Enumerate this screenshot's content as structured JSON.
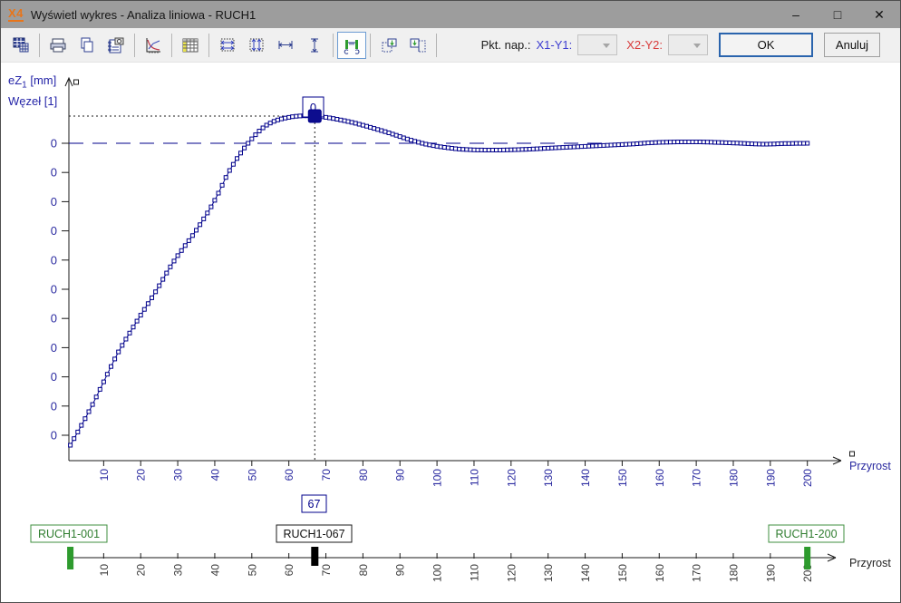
{
  "window": {
    "logo": "X4",
    "title": "Wyświetl wykres - Analiza liniowa - RUCH1",
    "controls": {
      "minimize": "–",
      "maximize": "□",
      "close": "✕"
    }
  },
  "toolbar": {
    "icons": [
      "copy-table",
      "print",
      "copy",
      "capture-notes",
      "chart",
      "data-table",
      "stretch-horizontal",
      "stretch-vertical",
      "scale-horizontal",
      "scale-vertical",
      "slider-range",
      "paste-increment",
      "paste-column"
    ],
    "pkt_nap_label": "Pkt. nap.:",
    "x1y1_label": "X1-Y1:",
    "x2y2_label": "X2-Y2:",
    "ok_label": "OK",
    "cancel_label": "Anuluj"
  },
  "chart": {
    "ylabel_main": "eZ",
    "ylabel_sub": "1",
    "ylabel_unit": " [mm]",
    "ylabel_line2": "Węzeł [1]",
    "xlabel": "Przyrost",
    "selected_value_label": "0",
    "selected_increment_label": "67"
  },
  "chart_data": {
    "type": "line",
    "title": "",
    "xlabel": "Przyrost",
    "ylabel": "eZ1 [mm] Węzeł [1]",
    "y_unit": "mm",
    "x_range": [
      1,
      200
    ],
    "x_ticks": [
      10,
      20,
      30,
      40,
      50,
      60,
      70,
      80,
      90,
      100,
      110,
      120,
      130,
      140,
      150,
      160,
      170,
      180,
      190,
      200
    ],
    "y_tick_labels": [
      "0",
      "0",
      "0",
      "0",
      "0",
      "0",
      "0",
      "0",
      "0",
      "0",
      "0"
    ],
    "ylim_normalized": [
      -1.05,
      0.12
    ],
    "grid": false,
    "selected_point": {
      "x": 67,
      "label": "0"
    },
    "series": [
      {
        "name": "eZ1 Węzeł [1]",
        "marker": "square",
        "control_points": [
          [
            1,
            -1.0
          ],
          [
            6,
            -0.889
          ],
          [
            10,
            -0.79
          ],
          [
            14,
            -0.691
          ],
          [
            19,
            -0.589
          ],
          [
            24,
            -0.492
          ],
          [
            29,
            -0.39
          ],
          [
            35,
            -0.288
          ],
          [
            40,
            -0.189
          ],
          [
            44,
            -0.09
          ],
          [
            49,
            0.0
          ],
          [
            54,
            0.06
          ],
          [
            60,
            0.086
          ],
          [
            67,
            0.09
          ],
          [
            76,
            0.072
          ],
          [
            85,
            0.042
          ],
          [
            96,
            0.0
          ],
          [
            105,
            -0.018
          ],
          [
            113,
            -0.0225
          ],
          [
            122,
            -0.021
          ],
          [
            132,
            -0.015
          ],
          [
            142,
            -0.009
          ],
          [
            152,
            -0.003
          ],
          [
            160,
            0.003
          ],
          [
            170,
            0.0045
          ],
          [
            180,
            0.001
          ],
          [
            188,
            -0.003
          ],
          [
            194,
            -0.001
          ],
          [
            200,
            0.0
          ]
        ]
      }
    ]
  },
  "slider": {
    "labels": {
      "start": "RUCH1-001",
      "current": "RUCH1-067",
      "end": "RUCH1-200"
    },
    "xlabel": "Przyrost",
    "ticks": [
      10,
      20,
      30,
      40,
      50,
      60,
      70,
      80,
      90,
      100,
      110,
      120,
      130,
      140,
      150,
      160,
      170,
      180,
      190,
      200
    ],
    "markers": [
      {
        "pos": 1,
        "type": "start",
        "color": "#2e9b2e"
      },
      {
        "pos": 67,
        "type": "current",
        "color": "#000000"
      },
      {
        "pos": 200,
        "type": "end",
        "color": "#2e9b2e"
      }
    ]
  },
  "colors": {
    "curve": "#00008b",
    "tick_text": "#2a2aa0",
    "axis": "#1a1a1a",
    "green": "#2e9b2e",
    "ok_border": "#2a64ad",
    "titlebar": "#9d9d9d",
    "logo_orange": "#e8751a"
  }
}
